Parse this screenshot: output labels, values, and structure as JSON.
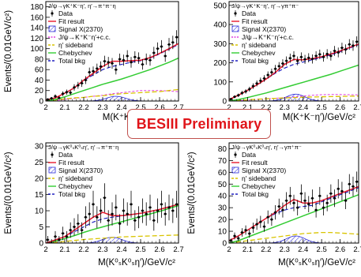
{
  "banner": "BESIII Preliminary",
  "colors": {
    "data": "#000000",
    "fit": "#e8182c",
    "signal": "#2a2ad8",
    "sideband": "#d9c400",
    "sideband_tl": "#e23ee0",
    "chebychev": "#33cc33",
    "total_bkg": "#2020c0"
  },
  "chart_data": [
    {
      "type": "scatter",
      "panel": "top-left",
      "process": "J/ψ→γK⁺K⁻η′, η′→π⁺π⁻η",
      "xlabel": "M(K⁺K⁻η′)/GeV/c²",
      "ylabel": "Events/(0.01GeV/c²)",
      "xlim": [
        2.0,
        2.7
      ],
      "ylim": [
        0,
        190
      ],
      "xticks": [
        "2",
        "2.1",
        "2.2",
        "2.3",
        "2.4",
        "2.5",
        "2.6",
        "2.7"
      ],
      "yticks": [
        "0",
        "20",
        "40",
        "60",
        "80",
        "100",
        "120",
        "140",
        "160",
        "180"
      ],
      "legend": [
        "Data",
        "Fit result",
        "Signal X(2370)",
        "J/ψ→K⁺K⁻η′+c.c.",
        "η′ sideband",
        "Chebychev",
        "Total bkg"
      ],
      "data_x": [
        2.01,
        2.03,
        2.05,
        2.07,
        2.09,
        2.11,
        2.13,
        2.15,
        2.17,
        2.19,
        2.21,
        2.23,
        2.25,
        2.27,
        2.29,
        2.31,
        2.33,
        2.35,
        2.37,
        2.39,
        2.41,
        2.43,
        2.45,
        2.47,
        2.49,
        2.51,
        2.53,
        2.55,
        2.57,
        2.59,
        2.61,
        2.63,
        2.65,
        2.67,
        2.69
      ],
      "data_y": [
        3,
        5,
        9,
        6,
        14,
        17,
        16,
        26,
        30,
        34,
        40,
        55,
        57,
        62,
        66,
        76,
        74,
        72,
        60,
        80,
        78,
        86,
        74,
        84,
        82,
        70,
        80,
        78,
        92,
        100,
        104,
        86,
        108,
        112,
        122
      ],
      "fit_x": [
        2.0,
        2.05,
        2.1,
        2.15,
        2.2,
        2.25,
        2.3,
        2.35,
        2.4,
        2.45,
        2.5,
        2.55,
        2.6,
        2.65,
        2.7
      ],
      "fit_y": [
        2,
        6,
        15,
        25,
        40,
        53,
        66,
        76,
        76,
        77,
        78,
        83,
        91,
        100,
        110
      ],
      "total_bkg_y": [
        2,
        6,
        15,
        25,
        39,
        50,
        60,
        66,
        70,
        74,
        77,
        82,
        90,
        99,
        108
      ],
      "chebychev_y": [
        0,
        3,
        8,
        14,
        20,
        26,
        32,
        37,
        42,
        48,
        54,
        60,
        67,
        74,
        82
      ],
      "sideband_y": [
        0,
        2,
        4,
        6,
        7,
        9,
        10,
        12,
        14,
        15,
        16,
        17,
        18,
        20,
        22
      ],
      "mc_bkg_y": [
        0,
        1,
        3,
        5,
        7,
        9,
        11,
        14,
        16,
        18,
        20,
        20,
        20,
        19,
        18
      ],
      "signal_center": 2.37,
      "signal_peak": 9,
      "signal_width": 0.05
    },
    {
      "type": "scatter",
      "panel": "top-right",
      "process": "J/ψ→γK⁺K⁻η′, η′→γπ⁺π⁻",
      "xlabel": "M(K⁺K⁻η′)/GeV/c²",
      "ylabel": "",
      "xlim": [
        2.0,
        2.7
      ],
      "ylim": [
        0,
        520
      ],
      "xticks": [
        "2",
        "2.1",
        "2.2",
        "2.3",
        "2.4",
        "2.5",
        "2.6",
        "2.7"
      ],
      "yticks": [
        "0",
        "100",
        "200",
        "300",
        "400",
        "500"
      ],
      "legend": [
        "Data",
        "Fit result",
        "Signal X(2370)",
        "J/ψ→K⁺K⁻η′+c.c.",
        "η′ sideband",
        "Chebychev",
        "Total bkg"
      ],
      "data_x": [
        2.01,
        2.03,
        2.05,
        2.07,
        2.09,
        2.11,
        2.13,
        2.15,
        2.17,
        2.19,
        2.21,
        2.23,
        2.25,
        2.27,
        2.29,
        2.31,
        2.33,
        2.35,
        2.37,
        2.39,
        2.41,
        2.43,
        2.45,
        2.47,
        2.49,
        2.51,
        2.53,
        2.55,
        2.57,
        2.59,
        2.61,
        2.63,
        2.65,
        2.67,
        2.69
      ],
      "data_y": [
        10,
        22,
        30,
        42,
        50,
        62,
        78,
        92,
        106,
        118,
        136,
        150,
        168,
        182,
        196,
        210,
        224,
        236,
        210,
        230,
        218,
        226,
        220,
        236,
        244,
        230,
        246,
        236,
        262,
        254,
        278,
        270,
        296,
        290,
        310
      ],
      "fit_x": [
        2.0,
        2.05,
        2.1,
        2.15,
        2.2,
        2.25,
        2.3,
        2.35,
        2.4,
        2.45,
        2.5,
        2.55,
        2.6,
        2.65,
        2.7
      ],
      "fit_y": [
        8,
        30,
        56,
        84,
        115,
        150,
        192,
        218,
        215,
        222,
        232,
        246,
        262,
        280,
        298
      ],
      "total_bkg_y": [
        8,
        30,
        56,
        84,
        114,
        146,
        172,
        192,
        204,
        216,
        228,
        242,
        258,
        276,
        295
      ],
      "chebychev_y": [
        0,
        8,
        18,
        30,
        42,
        56,
        70,
        84,
        98,
        112,
        126,
        140,
        156,
        172,
        188
      ],
      "sideband_y": [
        0,
        3,
        6,
        9,
        12,
        14,
        16,
        18,
        20,
        21,
        22,
        23,
        24,
        25,
        26
      ],
      "mc_bkg_y": [
        0,
        2,
        5,
        8,
        11,
        14,
        18,
        22,
        26,
        30,
        33,
        34,
        34,
        33,
        32
      ],
      "signal_center": 2.36,
      "signal_peak": 36,
      "signal_width": 0.05
    },
    {
      "type": "scatter",
      "panel": "bottom-left",
      "process": "J/ψ→γK⁰ₛK⁰ₛη′, η′→π⁺π⁻η",
      "xlabel": "M(K⁰ₛK⁰ₛη′)/GeV/c²",
      "ylabel": "Events/(0.01GeV/c²)",
      "xlim": [
        2.0,
        2.7
      ],
      "ylim": [
        0,
        31
      ],
      "xticks": [
        "2",
        "2.1",
        "2.2",
        "2.3",
        "2.4",
        "2.5",
        "2.6",
        "2.7"
      ],
      "yticks": [
        "0",
        "5",
        "10",
        "15",
        "20",
        "25",
        "30"
      ],
      "legend": [
        "Data",
        "Fit result",
        "Signal X(2370)",
        "η′ sideband",
        "Chebychev",
        "Total bkg"
      ],
      "data_x": [
        2.01,
        2.03,
        2.05,
        2.07,
        2.09,
        2.11,
        2.13,
        2.15,
        2.17,
        2.19,
        2.21,
        2.23,
        2.25,
        2.27,
        2.29,
        2.31,
        2.33,
        2.35,
        2.37,
        2.39,
        2.41,
        2.43,
        2.45,
        2.47,
        2.49,
        2.51,
        2.53,
        2.55,
        2.57,
        2.59,
        2.61,
        2.63,
        2.65,
        2.67,
        2.69
      ],
      "data_y": [
        1,
        0,
        2,
        1,
        3,
        2,
        4,
        5,
        6,
        4,
        8,
        9,
        12,
        8,
        10,
        14,
        7,
        9,
        11,
        6,
        10,
        9,
        12,
        7,
        8,
        10,
        9,
        11,
        7,
        10,
        12,
        9,
        11,
        10,
        12
      ],
      "fit_x": [
        2.0,
        2.05,
        2.1,
        2.15,
        2.2,
        2.25,
        2.3,
        2.35,
        2.4,
        2.45,
        2.5,
        2.55,
        2.6,
        2.65,
        2.7
      ],
      "fit_y": [
        0,
        1,
        2,
        4,
        6,
        8,
        9.5,
        8.5,
        8.5,
        8.8,
        9.2,
        9.8,
        10.4,
        11.2,
        12
      ],
      "total_bkg_y": [
        0,
        1,
        2,
        3.5,
        5,
        6.5,
        7.5,
        8,
        8.4,
        8.8,
        9.2,
        9.8,
        10.4,
        11.2,
        12
      ],
      "chebychev_y": [
        0,
        0.6,
        1.4,
        2.3,
        3.3,
        4.2,
        5,
        5.8,
        6.6,
        7.4,
        8.2,
        9,
        9.8,
        10.7,
        11.6
      ],
      "sideband_y": [
        0,
        0.2,
        0.5,
        0.8,
        1.1,
        1.3,
        1.5,
        1.7,
        1.9,
        2,
        2.1,
        2.2,
        2.3,
        2.4,
        2.5
      ],
      "signal_center": 2.35,
      "signal_peak": 1.8,
      "signal_width": 0.05
    },
    {
      "type": "scatter",
      "panel": "bottom-right",
      "process": "J/ψ→γK⁰ₛK⁰ₛη′, η′→γπ⁺π⁻",
      "xlabel": "M(K⁰ₛK⁰ₛη′)/GeV/c²",
      "ylabel": "Events/(0.01GeV/c²)",
      "xlim": [
        2.0,
        2.7
      ],
      "ylim": [
        0,
        85
      ],
      "xticks": [
        "2",
        "2.1",
        "2.2",
        "2.3",
        "2.4",
        "2.5",
        "2.6",
        "2.7"
      ],
      "yticks": [
        "0",
        "10",
        "20",
        "30",
        "40",
        "50",
        "60",
        "70",
        "80"
      ],
      "legend": [
        "Data",
        "Fit result",
        "Signal X(2370)",
        "η′ sideband",
        "Chebychev",
        "Total bkg"
      ],
      "data_x": [
        2.01,
        2.03,
        2.05,
        2.07,
        2.09,
        2.11,
        2.13,
        2.15,
        2.17,
        2.19,
        2.21,
        2.23,
        2.25,
        2.27,
        2.29,
        2.31,
        2.33,
        2.35,
        2.37,
        2.39,
        2.41,
        2.43,
        2.45,
        2.47,
        2.49,
        2.51,
        2.53,
        2.55,
        2.57,
        2.59,
        2.61,
        2.63,
        2.65,
        2.67,
        2.69
      ],
      "data_y": [
        2,
        6,
        4,
        9,
        11,
        8,
        13,
        16,
        18,
        14,
        22,
        20,
        26,
        31,
        28,
        36,
        40,
        34,
        30,
        42,
        36,
        33,
        38,
        28,
        40,
        30,
        34,
        42,
        38,
        46,
        44,
        36,
        50,
        48,
        52
      ],
      "fit_x": [
        2.0,
        2.05,
        2.1,
        2.15,
        2.2,
        2.25,
        2.3,
        2.35,
        2.4,
        2.45,
        2.5,
        2.55,
        2.6,
        2.65,
        2.7
      ],
      "fit_y": [
        2,
        6,
        11,
        16,
        21,
        26,
        32,
        37,
        34,
        34,
        36,
        39,
        42,
        45,
        48
      ],
      "total_bkg_y": [
        2,
        6,
        11,
        16,
        21,
        25,
        28,
        30,
        31,
        32,
        35,
        38,
        41,
        44,
        47
      ],
      "chebychev_y": [
        0,
        2,
        5,
        8,
        11,
        14,
        17,
        20,
        23,
        26,
        29,
        32,
        35,
        38,
        41
      ],
      "sideband_y": [
        0,
        1,
        2,
        3,
        4,
        5,
        6,
        7,
        8,
        8.5,
        9,
        9,
        8.5,
        8,
        7.5
      ],
      "signal_center": 2.36,
      "signal_peak": 6,
      "signal_width": 0.05
    }
  ]
}
